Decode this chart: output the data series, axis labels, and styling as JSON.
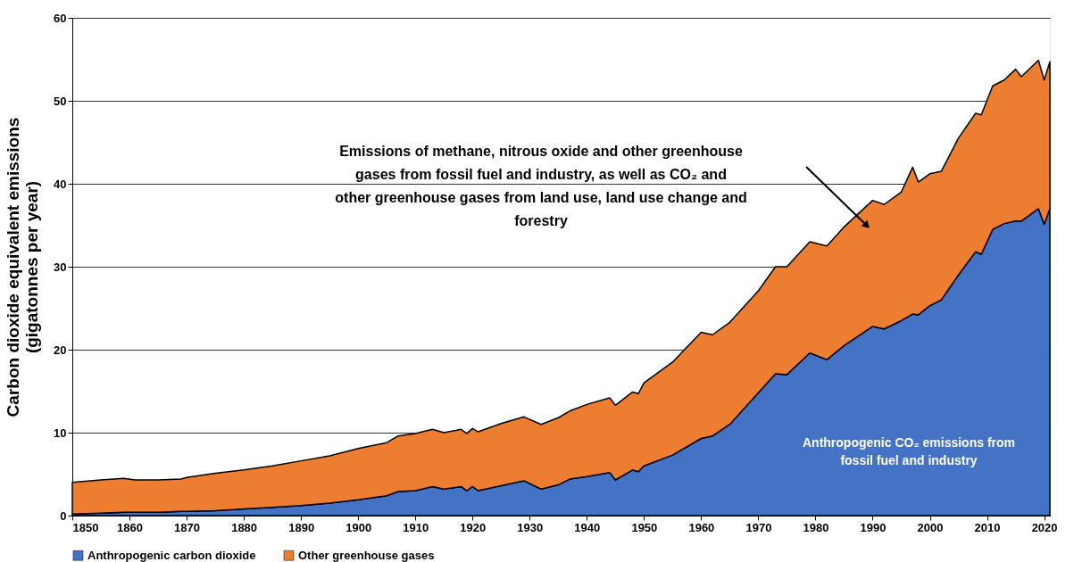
{
  "chart_data": {
    "type": "area",
    "stacked": true,
    "ylabel": "Carbon dioxide equivalent emissions (gigatonnes per year)",
    "x": [
      1850,
      1855,
      1859,
      1861,
      1865,
      1869,
      1870,
      1875,
      1880,
      1885,
      1890,
      1895,
      1900,
      1905,
      1907,
      1910,
      1913,
      1915,
      1918,
      1919,
      1920,
      1921,
      1925,
      1929,
      1932,
      1935,
      1937,
      1940,
      1944,
      1945,
      1948,
      1949,
      1950,
      1955,
      1960,
      1962,
      1965,
      1970,
      1973,
      1975,
      1979,
      1982,
      1985,
      1990,
      1992,
      1995,
      1997,
      1998,
      2000,
      2002,
      2005,
      2008,
      2009,
      2011,
      2013,
      2015,
      2016,
      2019,
      2020,
      2021
    ],
    "series": [
      {
        "name": "Anthropogenic carbon dioxide",
        "color": "#4472c4",
        "values": [
          0.2,
          0.3,
          0.4,
          0.4,
          0.4,
          0.5,
          0.5,
          0.6,
          0.8,
          1.0,
          1.2,
          1.5,
          1.9,
          2.4,
          2.9,
          3.0,
          3.5,
          3.2,
          3.5,
          3.0,
          3.5,
          3.0,
          3.6,
          4.2,
          3.2,
          3.7,
          4.4,
          4.7,
          5.2,
          4.3,
          5.5,
          5.3,
          6.0,
          7.3,
          9.3,
          9.6,
          11.0,
          14.8,
          17.1,
          17.0,
          19.6,
          18.8,
          20.5,
          22.8,
          22.5,
          23.5,
          24.3,
          24.2,
          25.3,
          26.0,
          29.0,
          31.8,
          31.5,
          34.5,
          35.2,
          35.5,
          35.5,
          37.0,
          35.1,
          37.0
        ]
      },
      {
        "name": "Other greenhouse gases",
        "color": "#ed7d31",
        "values": [
          3.8,
          4.0,
          4.1,
          3.9,
          3.9,
          3.9,
          4.1,
          4.5,
          4.7,
          5.0,
          5.4,
          5.7,
          6.2,
          6.4,
          6.7,
          6.9,
          6.9,
          6.8,
          6.9,
          6.9,
          7.0,
          7.1,
          7.5,
          7.7,
          7.8,
          8.1,
          8.2,
          8.7,
          9.0,
          9.0,
          9.4,
          9.4,
          10.0,
          11.2,
          12.8,
          12.2,
          12.3,
          12.3,
          12.9,
          13.0,
          13.4,
          13.7,
          14.3,
          15.2,
          15.0,
          15.5,
          17.7,
          16.0,
          15.9,
          15.5,
          16.5,
          16.7,
          16.8,
          17.3,
          17.3,
          18.3,
          17.4,
          17.9,
          17.4,
          17.7
        ]
      }
    ],
    "xlim": [
      1850,
      2021
    ],
    "xticks": [
      1850,
      1860,
      1870,
      1880,
      1890,
      1900,
      1910,
      1920,
      1930,
      1940,
      1950,
      1960,
      1970,
      1980,
      1990,
      2000,
      2010,
      2020
    ],
    "ylim": [
      0,
      60
    ],
    "yticks": [
      0,
      10,
      20,
      30,
      40,
      50,
      60
    ],
    "grid": "y",
    "legend": "bottom",
    "annotations": [
      "Emissions of methane, nitrous oxide and other greenhouse gases from fossil fuel and industry, as well as CO₂ and other greenhouse gases from land use, land use change and forestry",
      "Anthropogenic CO₂ emissions from fossil fuel and industry"
    ]
  }
}
